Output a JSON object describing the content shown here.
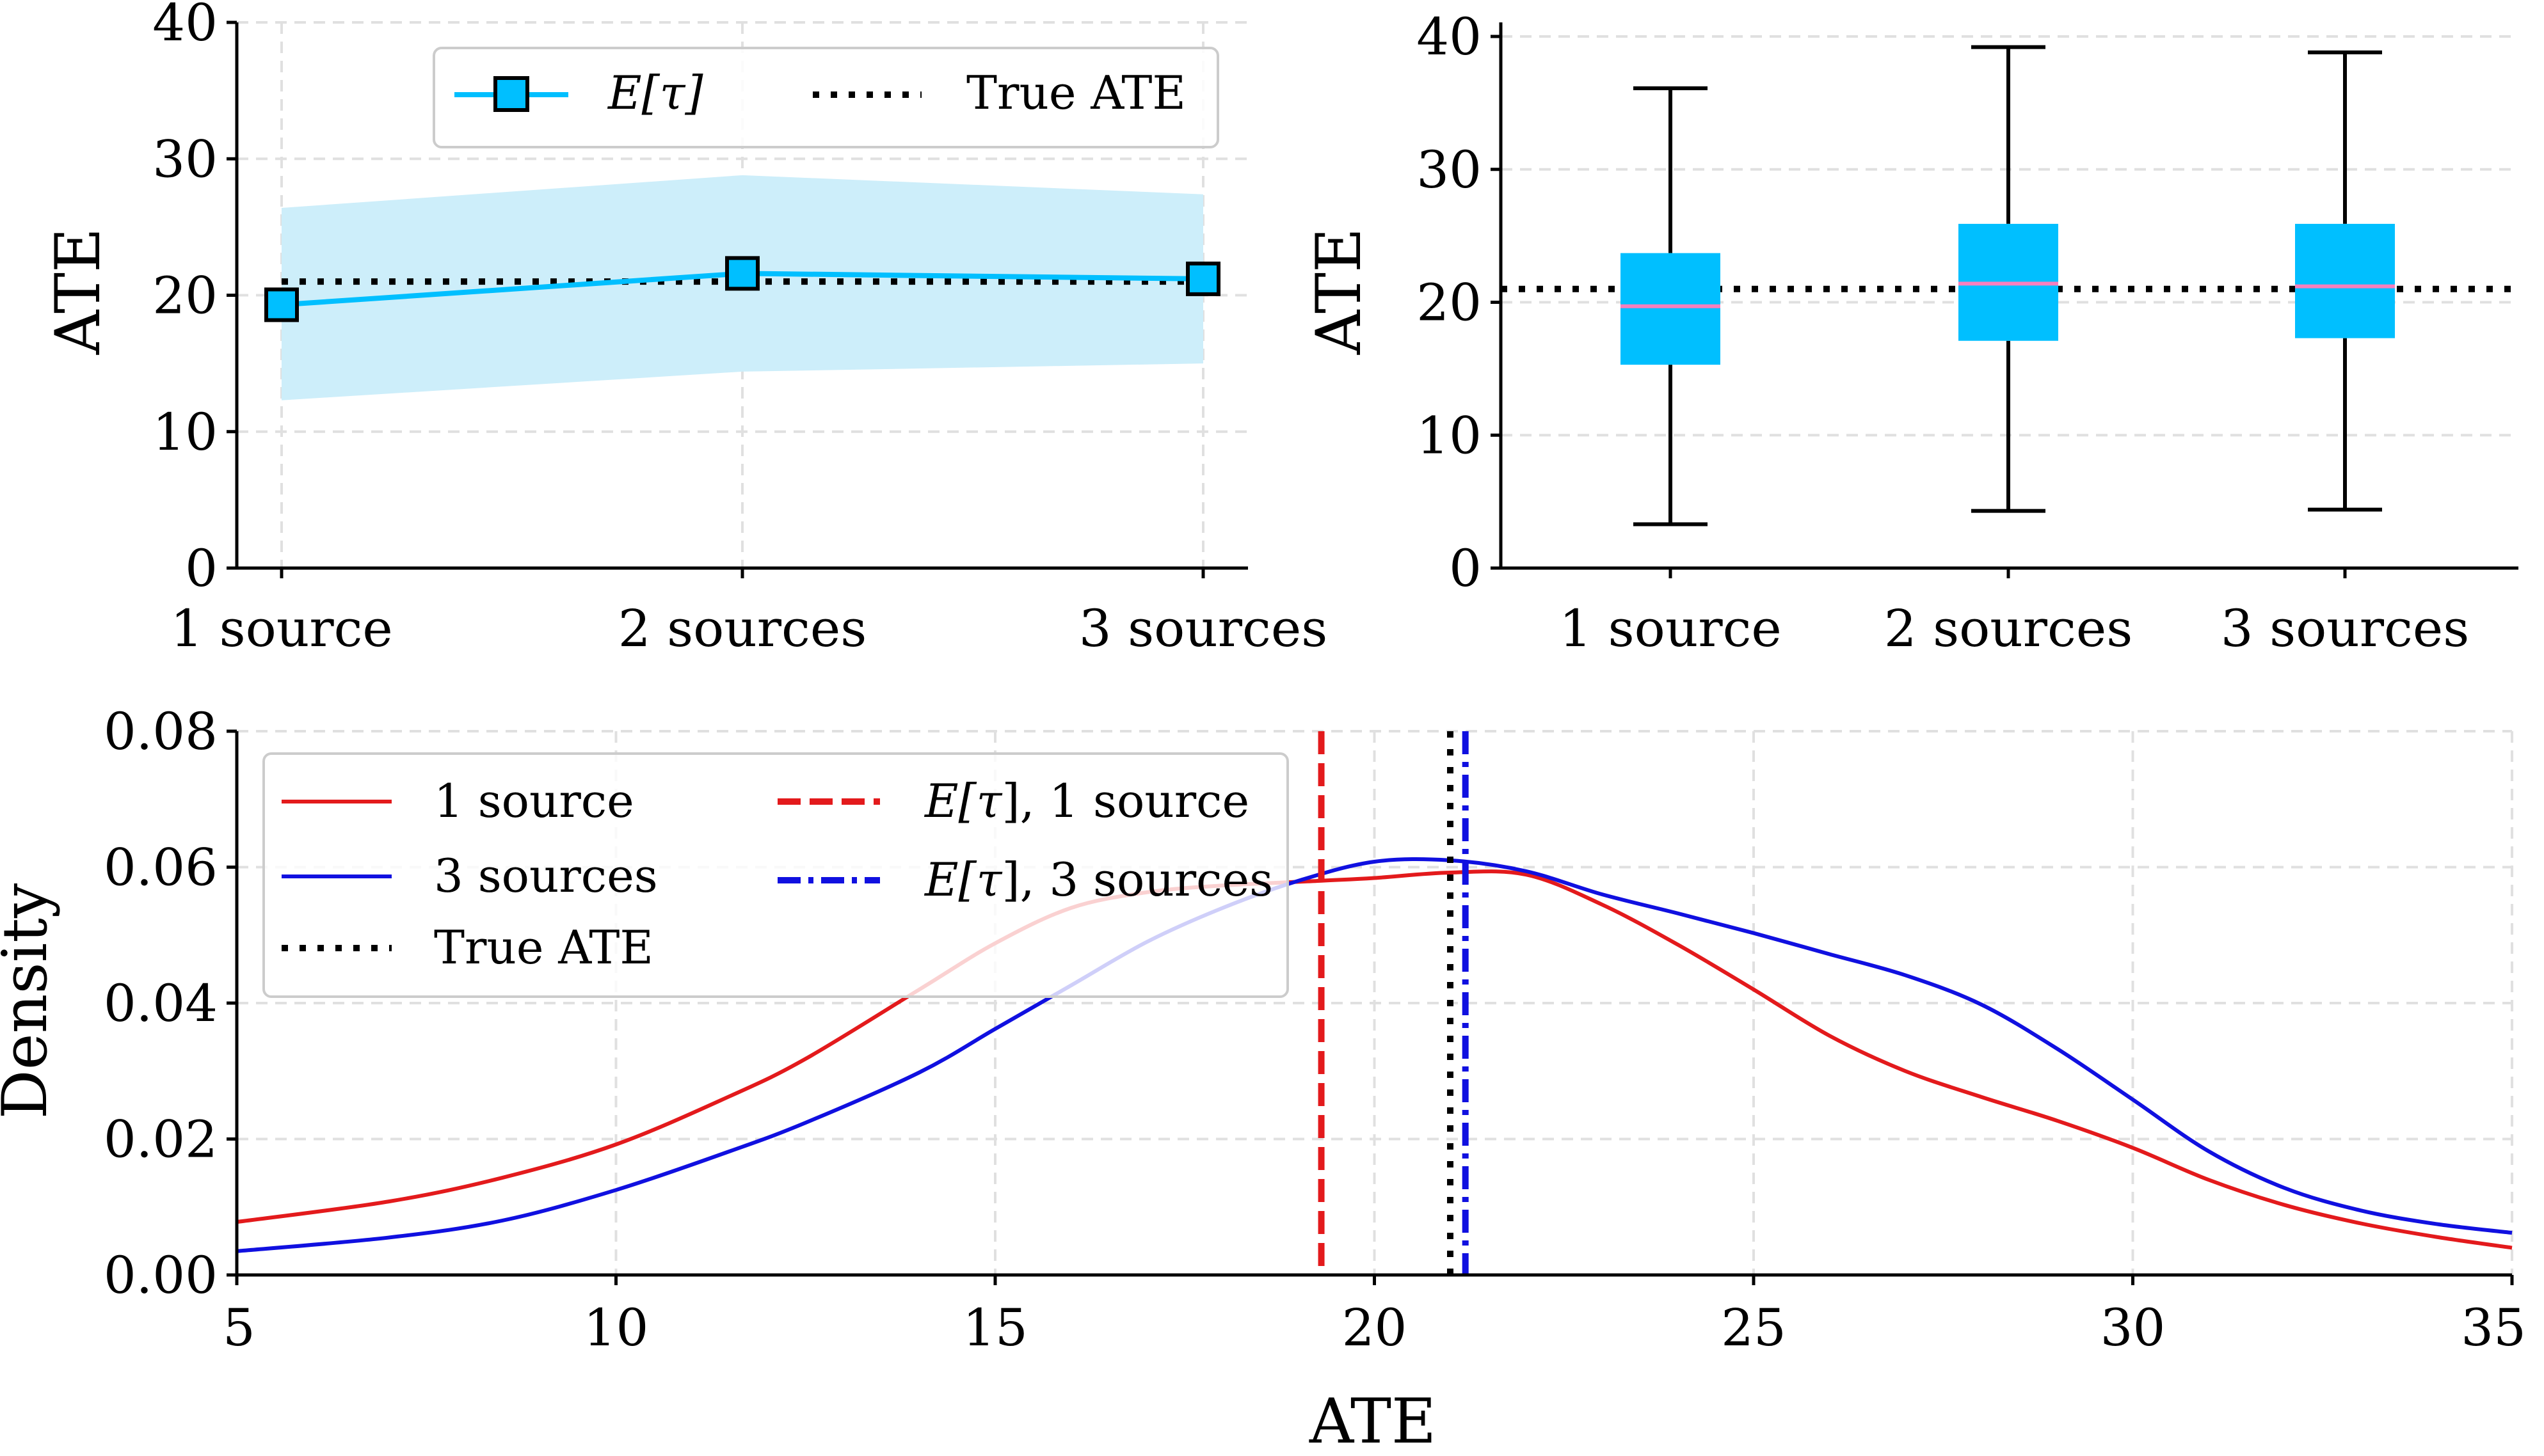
{
  "colors": {
    "estimate": "#00bfff",
    "estimate_band": "#cdeefa",
    "box_fill": "#00bfff",
    "median": "#f77fbe",
    "one_source": "#e31a1c",
    "three_sources": "#1010e0",
    "true_ate": "#000000",
    "grid": "#e0e0e0"
  },
  "chart_data": [
    {
      "type": "line",
      "panel": "top-left",
      "categories": [
        "1 source",
        "2 sources",
        "3 sources"
      ],
      "series": [
        {
          "name": "E[τ]",
          "values": [
            19.3,
            21.6,
            21.2
          ],
          "band_lower": [
            12.3,
            14.4,
            15.0
          ],
          "band_upper": [
            26.4,
            28.8,
            27.4
          ]
        }
      ],
      "reference_line": {
        "name": "True ATE",
        "value": 21.0
      },
      "ylabel": "ATE",
      "ylim": [
        0,
        40
      ],
      "yticks": [
        0,
        10,
        20,
        30,
        40
      ],
      "grid": true,
      "legend_placement": "top-right",
      "legend_name_math": "τ"
    },
    {
      "type": "box",
      "panel": "top-right",
      "categories": [
        "1 source",
        "2 sources",
        "3 sources"
      ],
      "boxes": [
        {
          "whisker_low": 3.3,
          "q1": 15.3,
          "median": 19.7,
          "q3": 23.7,
          "whisker_high": 36.1
        },
        {
          "whisker_low": 4.3,
          "q1": 17.1,
          "median": 21.4,
          "q3": 25.9,
          "whisker_high": 39.2
        },
        {
          "whisker_low": 4.4,
          "q1": 17.3,
          "median": 21.2,
          "q3": 25.9,
          "whisker_high": 38.8
        }
      ],
      "reference_line": {
        "value": 21.0
      },
      "ylabel": "ATE",
      "ylim": [
        0,
        40
      ],
      "yticks": [
        0,
        10,
        20,
        30,
        40
      ],
      "grid": true
    },
    {
      "type": "line",
      "panel": "bottom",
      "xlabel": "ATE",
      "ylabel": "Density",
      "xlim": [
        5,
        35
      ],
      "ylim": [
        0,
        0.08
      ],
      "xticks": [
        "5",
        "10",
        "15",
        "20",
        "25",
        "30",
        "35"
      ],
      "yticks": [
        "0.00",
        "0.02",
        "0.04",
        "0.06",
        "0.08"
      ],
      "grid": true,
      "legend_placement": "top-left",
      "series": [
        {
          "name": "1 source",
          "x": [
            5,
            7,
            8.5,
            10,
            11.5,
            12.5,
            14,
            15,
            16,
            17,
            18,
            19.3,
            20,
            21,
            22,
            23,
            24,
            25,
            26,
            27,
            28,
            29,
            30,
            31,
            32,
            33,
            34,
            35
          ],
          "values": [
            0.0078,
            0.0108,
            0.0143,
            0.0192,
            0.0263,
            0.0318,
            0.042,
            0.0488,
            0.054,
            0.0563,
            0.0573,
            0.058,
            0.0584,
            0.0592,
            0.0589,
            0.0545,
            0.0486,
            0.042,
            0.0352,
            0.03,
            0.0262,
            0.0227,
            0.0187,
            0.014,
            0.0103,
            0.0076,
            0.0056,
            0.004
          ]
        },
        {
          "name": "3 sources",
          "x": [
            5,
            7,
            8.5,
            10,
            11.5,
            12.5,
            14,
            15,
            16,
            17,
            18,
            19,
            20,
            21,
            22,
            23,
            24,
            25,
            26,
            27,
            28,
            29,
            30,
            31,
            32,
            33,
            34,
            35
          ],
          "values": [
            0.0035,
            0.0055,
            0.008,
            0.0125,
            0.0182,
            0.0224,
            0.0298,
            0.0362,
            0.0426,
            0.049,
            0.054,
            0.058,
            0.0608,
            0.061,
            0.0594,
            0.056,
            0.0532,
            0.0503,
            0.0472,
            0.0441,
            0.0398,
            0.0333,
            0.0258,
            0.0182,
            0.0128,
            0.0095,
            0.0075,
            0.0062
          ]
        }
      ],
      "vertical_lines": [
        {
          "name": "E[τ], 1 source",
          "value": 19.3
        },
        {
          "name": "E[τ], 3 sources",
          "value": 21.2
        },
        {
          "name": "True ATE",
          "value": 21.0
        }
      ],
      "legend_math": "τ"
    }
  ],
  "text": {
    "tl_ylabel": "ATE",
    "tl_cat_0": "1 source",
    "tl_cat_1": "2 sources",
    "tl_cat_2": "3 sources",
    "tl_legend_e_prefix": "E[",
    "tl_legend_tau": "τ",
    "tl_legend_e_suffix": "]",
    "tl_legend_true": "True ATE",
    "tr_ylabel": "ATE",
    "tr_cat_0": "1 source",
    "tr_cat_1": "2 sources",
    "tr_cat_2": "3 sources",
    "b_xlabel": "ATE",
    "b_ylabel": "Density",
    "b_legend_1source": "1 source",
    "b_legend_3sources": "3 sources",
    "b_legend_true": "True ATE",
    "b_legend_e1_prefix": "E[",
    "b_legend_e1_tau": "τ",
    "b_legend_e1_suffix": "], 1 source",
    "b_legend_e3_prefix": "E[",
    "b_legend_e3_tau": "τ",
    "b_legend_e3_suffix": "], 3 sources"
  }
}
